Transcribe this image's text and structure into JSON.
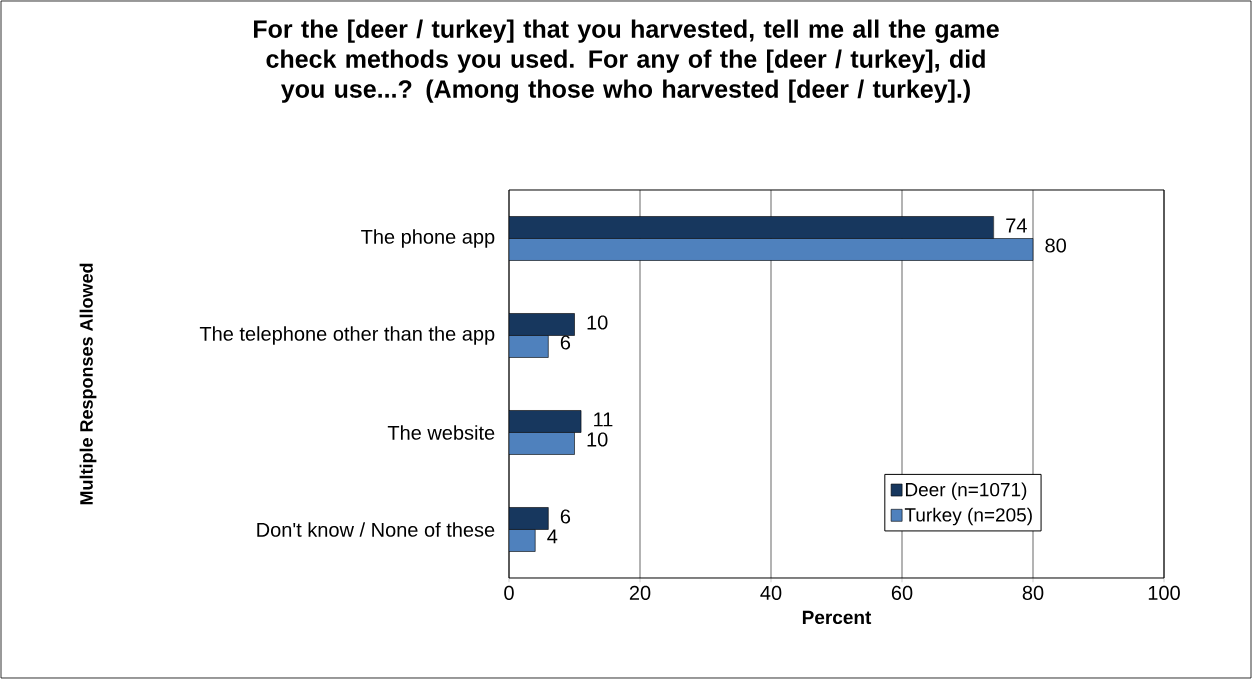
{
  "chart_data": {
    "type": "bar",
    "orientation": "horizontal",
    "title": "For the [deer / turkey] that you harvested, tell me all the game check methods you used. For any of the [deer / turkey], did you use...? (Among those who harvested [deer / turkey].)",
    "xlabel": "Percent",
    "annotations": [
      "Multiple Responses Allowed"
    ],
    "categories": [
      "The phone app",
      "The telephone other than the app",
      "The website",
      "Don't know / None of these"
    ],
    "series": [
      {
        "name": "Deer (n=1071)",
        "color": "#17375e",
        "values": [
          74,
          10,
          11,
          6
        ]
      },
      {
        "name": "Turkey (n=205)",
        "color": "#4f81bd",
        "values": [
          80,
          6,
          10,
          4
        ]
      }
    ],
    "xlim": [
      0,
      100
    ],
    "xticks": [
      0,
      20,
      40,
      60,
      80,
      100
    ],
    "grid": "x",
    "legend": "bottom right",
    "data_labels": true
  }
}
